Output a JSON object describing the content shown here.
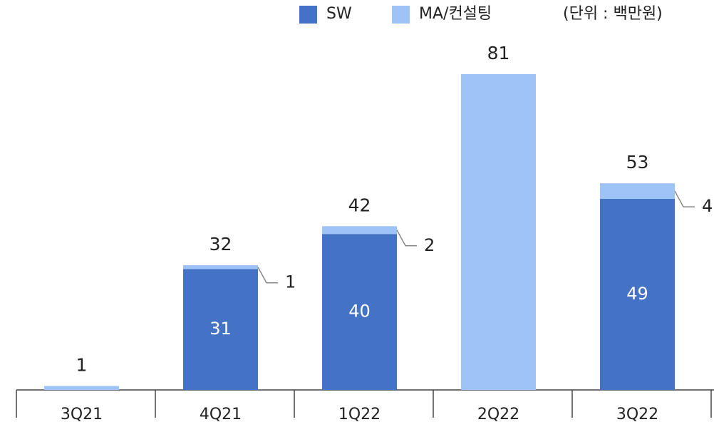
{
  "chart_data": {
    "type": "stacked_bar",
    "unit_note": "(단위 : 백만원)",
    "categories": [
      "3Q21",
      "4Q21",
      "1Q22",
      "2Q22",
      "3Q22"
    ],
    "series": [
      {
        "name": "SW",
        "color": "#4472c4",
        "values": [
          null,
          31,
          40,
          null,
          49
        ]
      },
      {
        "name": "MA/컨설팅",
        "color": "#9dc3f7",
        "values": [
          1,
          1,
          2,
          81,
          4
        ]
      }
    ],
    "totals": [
      1,
      32,
      42,
      81,
      53
    ]
  }
}
